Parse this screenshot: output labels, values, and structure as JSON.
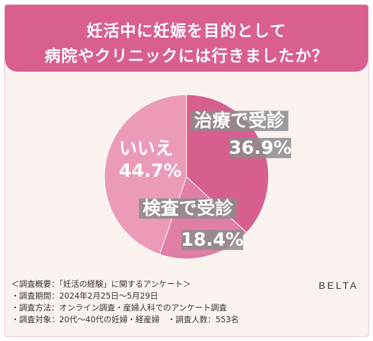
{
  "title": {
    "line1": "妊活中に妊娠を目的として",
    "line2": "病院やクリニックには行きましたか？"
  },
  "chart_data": {
    "type": "pie",
    "slices": [
      {
        "label": "治療で受診",
        "value": 36.9,
        "value_label": "36.9%",
        "color": "#d75f8e"
      },
      {
        "label": "検査で受診",
        "value": 18.4,
        "value_label": "18.4%",
        "color": "#e07ea5"
      },
      {
        "label": "いいえ",
        "value": 44.7,
        "value_label": "44.7%",
        "color": "#eb9ab8"
      }
    ],
    "start": "top",
    "direction": "clockwise",
    "legend": "none"
  },
  "notes": [
    "＜調査概要：「妊活の経験」に関するアンケート＞",
    "・調査期間：2024年2月25日～5月29日",
    "・調査方法：オンライン調査・産婦人科でのアンケート調査",
    "・調査対象：20代～40代の妊婦・経産婦　・調査人数：553名"
  ],
  "brand": "BELTA",
  "colors": {
    "title_bg": "#d85f8e",
    "panel_bg": "#faf2ef",
    "label_box": "#8c8c8c"
  }
}
